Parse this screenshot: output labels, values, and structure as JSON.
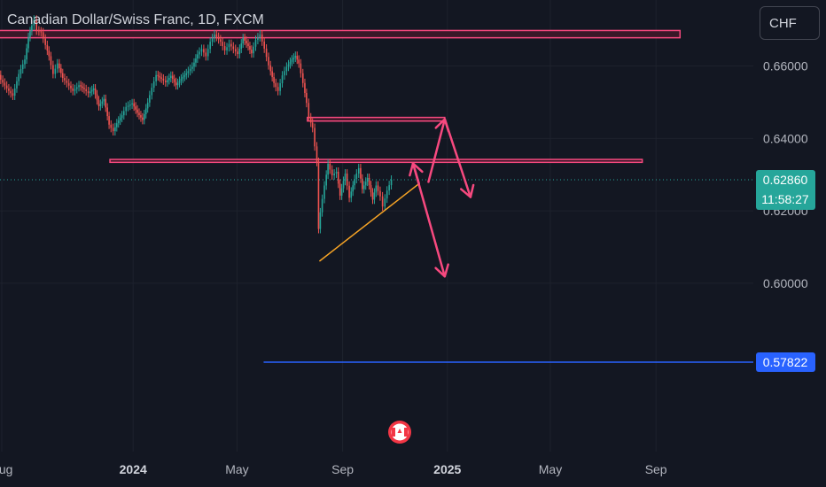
{
  "header": {
    "title": "Canadian Dollar/Swiss Franc, 1D, FXCM",
    "currency_button": "CHF"
  },
  "colors": {
    "background": "#131722",
    "up_candle": "#26a69a",
    "down_candle": "#ef5350",
    "annotation_pink": "#f7497f",
    "zone_fill": "#3a1828",
    "trendline": "#f7a425",
    "blue_level": "#2962ff",
    "price_dotted": "#26a69a"
  },
  "chart_data": {
    "type": "candlestick",
    "symbol": "Canadian Dollar/Swiss Franc",
    "interval": "1D",
    "broker": "FXCM",
    "y_axis": {
      "ticks": [
        "0.66000",
        "0.64000",
        "0.62000",
        "0.60000"
      ],
      "tick_values": [
        0.66,
        0.64,
        0.62,
        0.6
      ],
      "range": [
        0.5717,
        0.6748
      ],
      "position": "right"
    },
    "x_axis": {
      "labels": [
        {
          "text": "Aug",
          "date": "2023-08-01",
          "bold": false
        },
        {
          "text": "2024",
          "date": "2024-01-01",
          "bold": true
        },
        {
          "text": "May",
          "date": "2024-05-01",
          "bold": false
        },
        {
          "text": "Sep",
          "date": "2024-09-01",
          "bold": false
        },
        {
          "text": "2025",
          "date": "2025-01-01",
          "bold": true
        },
        {
          "text": "May",
          "date": "2025-05-01",
          "bold": false
        },
        {
          "text": "Sep",
          "date": "2025-09-01",
          "bold": false
        }
      ]
    },
    "price_path": [
      [
        "2023-07-22",
        0.6603
      ],
      [
        "2023-07-27",
        0.6589
      ],
      [
        "2023-08-01",
        0.6562
      ],
      [
        "2023-08-08",
        0.6538
      ],
      [
        "2023-08-15",
        0.6518
      ],
      [
        "2023-08-22",
        0.6578
      ],
      [
        "2023-08-29",
        0.6618
      ],
      [
        "2023-09-02",
        0.668
      ],
      [
        "2023-09-06",
        0.6712
      ],
      [
        "2023-09-09",
        0.6728
      ],
      [
        "2023-09-12",
        0.6698
      ],
      [
        "2023-09-17",
        0.6693
      ],
      [
        "2023-09-22",
        0.6658
      ],
      [
        "2023-09-26",
        0.6627
      ],
      [
        "2023-10-01",
        0.6578
      ],
      [
        "2023-10-06",
        0.6607
      ],
      [
        "2023-10-12",
        0.6567
      ],
      [
        "2023-10-17",
        0.6553
      ],
      [
        "2023-10-24",
        0.6531
      ],
      [
        "2023-10-31",
        0.6547
      ],
      [
        "2023-11-06",
        0.6536
      ],
      [
        "2023-11-11",
        0.6525
      ],
      [
        "2023-11-17",
        0.6538
      ],
      [
        "2023-11-23",
        0.6489
      ],
      [
        "2023-11-29",
        0.6509
      ],
      [
        "2023-12-05",
        0.6438
      ],
      [
        "2023-12-10",
        0.642
      ],
      [
        "2023-12-14",
        0.6442
      ],
      [
        "2023-12-20",
        0.6464
      ],
      [
        "2023-12-25",
        0.6487
      ],
      [
        "2024-01-01",
        0.6497
      ],
      [
        "2024-01-07",
        0.6471
      ],
      [
        "2024-01-13",
        0.6451
      ],
      [
        "2024-01-19",
        0.6499
      ],
      [
        "2024-01-24",
        0.654
      ],
      [
        "2024-01-29",
        0.6575
      ],
      [
        "2024-02-04",
        0.6565
      ],
      [
        "2024-02-09",
        0.6555
      ],
      [
        "2024-02-15",
        0.6573
      ],
      [
        "2024-02-21",
        0.6547
      ],
      [
        "2024-02-27",
        0.6565
      ],
      [
        "2024-03-04",
        0.658
      ],
      [
        "2024-03-11",
        0.6598
      ],
      [
        "2024-03-17",
        0.6632
      ],
      [
        "2024-03-22",
        0.6647
      ],
      [
        "2024-03-27",
        0.6627
      ],
      [
        "2024-04-01",
        0.6667
      ],
      [
        "2024-04-06",
        0.6687
      ],
      [
        "2024-04-13",
        0.6667
      ],
      [
        "2024-04-18",
        0.6643
      ],
      [
        "2024-04-23",
        0.6661
      ],
      [
        "2024-04-28",
        0.6647
      ],
      [
        "2024-05-03",
        0.6633
      ],
      [
        "2024-05-09",
        0.6677
      ],
      [
        "2024-05-15",
        0.6655
      ],
      [
        "2024-05-19",
        0.6635
      ],
      [
        "2024-05-24",
        0.6672
      ],
      [
        "2024-05-29",
        0.6687
      ],
      [
        "2024-06-03",
        0.6648
      ],
      [
        "2024-06-08",
        0.6602
      ],
      [
        "2024-06-14",
        0.6553
      ],
      [
        "2024-06-19",
        0.6531
      ],
      [
        "2024-06-24",
        0.6574
      ],
      [
        "2024-06-29",
        0.6598
      ],
      [
        "2024-07-05",
        0.6618
      ],
      [
        "2024-07-09",
        0.6628
      ],
      [
        "2024-07-13",
        0.6607
      ],
      [
        "2024-07-18",
        0.6553
      ],
      [
        "2024-07-22",
        0.6498
      ],
      [
        "2024-07-25",
        0.6458
      ],
      [
        "2024-07-29",
        0.6429
      ],
      [
        "2024-08-01",
        0.6378
      ],
      [
        "2024-08-03",
        0.6335
      ],
      [
        "2024-08-05",
        0.615
      ],
      [
        "2024-08-07",
        0.6196
      ],
      [
        "2024-08-12",
        0.627
      ],
      [
        "2024-08-16",
        0.633
      ],
      [
        "2024-08-21",
        0.6298
      ],
      [
        "2024-08-26",
        0.6308
      ],
      [
        "2024-08-30",
        0.6242
      ],
      [
        "2024-09-05",
        0.6303
      ],
      [
        "2024-09-10",
        0.6236
      ],
      [
        "2024-09-16",
        0.6288
      ],
      [
        "2024-09-21",
        0.6318
      ],
      [
        "2024-09-25",
        0.626
      ],
      [
        "2024-10-01",
        0.6291
      ],
      [
        "2024-10-07",
        0.6231
      ],
      [
        "2024-10-11",
        0.627
      ],
      [
        "2024-10-16",
        0.624
      ],
      [
        "2024-10-19",
        0.6212
      ],
      [
        "2024-10-24",
        0.6256
      ],
      [
        "2024-10-29",
        0.6286
      ]
    ],
    "last_price": "0.62860",
    "countdown": "11:58:27",
    "horizontal_level": "0.57822",
    "annotations": {
      "resistance_zones": [
        {
          "from": "2023-07-22",
          "to": "2025-09-29",
          "price_top": 0.6698,
          "price_bottom": 0.6678
        },
        {
          "from": "2024-07-22",
          "to": "2024-12-29",
          "price_top": 0.6458,
          "price_bottom": 0.6448
        },
        {
          "from": "2023-12-05",
          "to": "2025-08-16",
          "price_top": 0.6342,
          "price_bottom": 0.6334
        }
      ],
      "trendline": {
        "from": [
          "2024-08-05",
          0.6061
        ],
        "to": [
          "2024-11-29",
          0.6275
        ]
      },
      "scenario_a": {
        "points": [
          [
            "2024-12-29",
            0.6453
          ],
          [
            "2025-01-28",
            0.6238
          ]
        ]
      },
      "scenario_b": {
        "points": [
          [
            "2024-11-22",
            0.6331
          ],
          [
            "2024-12-29",
            0.6019
          ]
        ]
      },
      "event_icon": "canada-flag-icon"
    }
  }
}
